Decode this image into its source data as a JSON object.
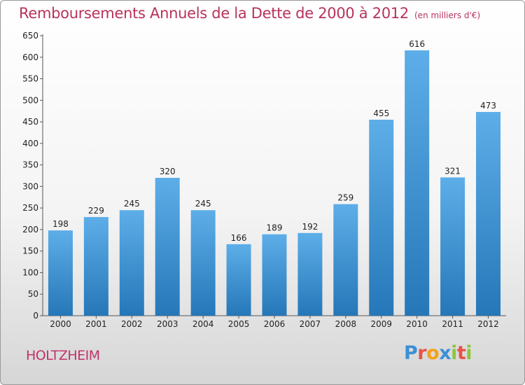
{
  "header": {
    "title": "Remboursements Annuels de la Dette de 2000 à 2012",
    "unit": "(en milliers d'€)"
  },
  "footer": {
    "city": "HOLTZHEIM",
    "logo": {
      "letters": [
        "P",
        "r",
        "o",
        "x",
        "i",
        "t",
        "i"
      ],
      "colors": [
        "#3b8fd6",
        "#e8534a",
        "#f2a21c",
        "#3b8fd6",
        "#8cc63e",
        "#e8534a",
        "#8cc63e"
      ]
    }
  },
  "chart_data": {
    "type": "bar",
    "title": "Remboursements Annuels de la Dette de 2000 à 2012",
    "categories": [
      "2000",
      "2001",
      "2002",
      "2003",
      "2004",
      "2005",
      "2006",
      "2007",
      "2008",
      "2009",
      "2010",
      "2011",
      "2012"
    ],
    "values": [
      198,
      229,
      245,
      320,
      245,
      166,
      189,
      192,
      259,
      455,
      616,
      321,
      473
    ],
    "ylim": [
      0,
      650
    ],
    "ytick_step": 50,
    "grid": false,
    "bar_color_top": "#5daee8",
    "bar_color_bottom": "#2577b8"
  }
}
